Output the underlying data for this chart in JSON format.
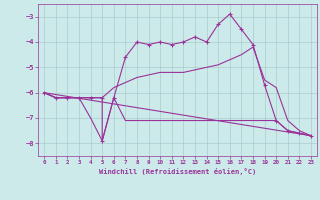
{
  "xlabel": "Windchill (Refroidissement éolien,°C)",
  "background_color": "#cceaea",
  "grid_color": "#aacccc",
  "line_color": "#993399",
  "xlim": [
    -0.5,
    23.5
  ],
  "ylim": [
    -8.5,
    -2.5
  ],
  "yticks": [
    -8,
    -7,
    -6,
    -5,
    -4,
    -3
  ],
  "xticks": [
    0,
    1,
    2,
    3,
    4,
    5,
    6,
    7,
    8,
    9,
    10,
    11,
    12,
    13,
    14,
    15,
    16,
    17,
    18,
    19,
    20,
    21,
    22,
    23
  ],
  "line1_x": [
    0,
    1,
    2,
    3,
    4,
    5,
    6,
    7,
    8,
    9,
    10,
    11,
    12,
    13,
    14,
    15,
    16,
    17,
    18,
    19,
    20,
    21,
    22,
    23
  ],
  "line1_y": [
    -6.0,
    -6.2,
    -6.2,
    -6.2,
    -7.0,
    -7.9,
    -6.2,
    -7.1,
    -7.1,
    -7.1,
    -7.1,
    -7.1,
    -7.1,
    -7.1,
    -7.1,
    -7.1,
    -7.1,
    -7.1,
    -7.1,
    -7.1,
    -7.1,
    -7.5,
    -7.6,
    -7.7
  ],
  "line2_x": [
    0,
    1,
    2,
    3,
    4,
    5,
    6,
    7,
    8,
    9,
    10,
    11,
    12,
    13,
    14,
    15,
    16,
    17,
    18,
    19,
    20,
    21,
    22,
    23
  ],
  "line2_y": [
    -6.0,
    -6.2,
    -6.2,
    -6.2,
    -6.2,
    -6.2,
    -5.8,
    -5.6,
    -5.4,
    -5.3,
    -5.2,
    -5.2,
    -5.2,
    -5.1,
    -5.0,
    -4.9,
    -4.7,
    -4.5,
    -4.2,
    -5.5,
    -5.8,
    -7.1,
    -7.5,
    -7.7
  ],
  "line3_x": [
    0,
    1,
    2,
    3,
    4,
    5,
    5,
    6,
    7,
    8,
    9,
    10,
    11,
    12,
    13,
    14,
    15,
    16,
    17,
    18,
    19,
    20,
    21,
    22,
    23
  ],
  "line3_y": [
    -6.0,
    -6.2,
    -6.2,
    -6.2,
    -6.2,
    -6.2,
    -7.9,
    -6.2,
    -4.6,
    -4.0,
    -4.1,
    -4.0,
    -4.1,
    -4.0,
    -3.8,
    -4.0,
    -3.3,
    -2.9,
    -3.5,
    -4.1,
    -5.7,
    -7.1,
    -7.5,
    -7.6,
    -7.7
  ],
  "line4_x": [
    0,
    23
  ],
  "line4_y": [
    -6.0,
    -7.7
  ]
}
